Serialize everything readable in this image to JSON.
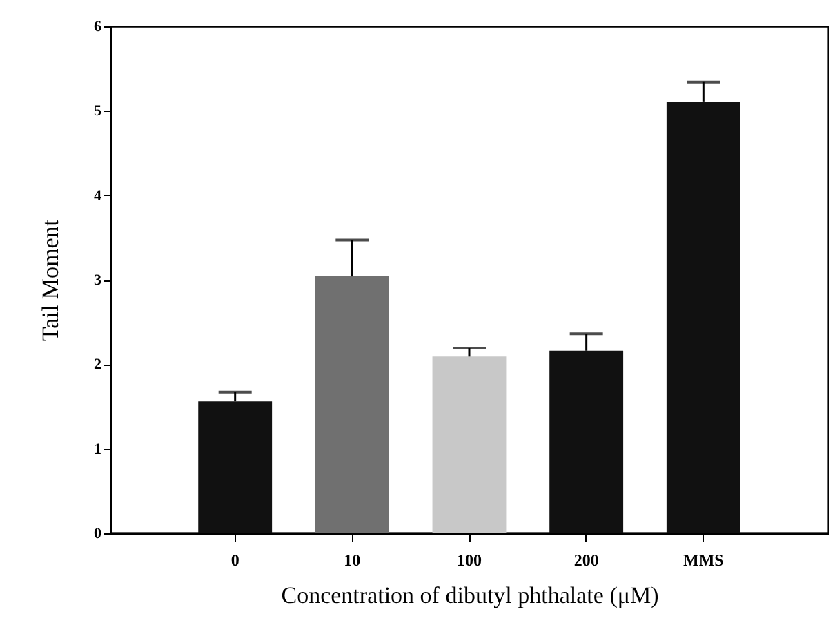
{
  "chart_data": {
    "type": "bar",
    "xlabel": "Concentration of dibutyl phthalate (μM)",
    "ylabel": "Tail Moment",
    "categories": [
      "0",
      "10",
      "100",
      "200",
      "MMS"
    ],
    "values": [
      1.56,
      3.04,
      2.09,
      2.16,
      5.11
    ],
    "colors": [
      "#111111",
      "#707070",
      "#c8c8c8",
      "#111111",
      "#111111"
    ],
    "errors": [
      [
        1.56,
        1.67
      ],
      [
        3.04,
        3.47
      ],
      [
        2.09,
        2.19
      ],
      [
        2.16,
        2.36
      ],
      [
        5.11,
        5.34
      ]
    ],
    "ylim": [
      0,
      6
    ],
    "yticks": [
      0,
      1,
      2,
      3,
      4,
      5,
      6
    ],
    "grid": false
  }
}
